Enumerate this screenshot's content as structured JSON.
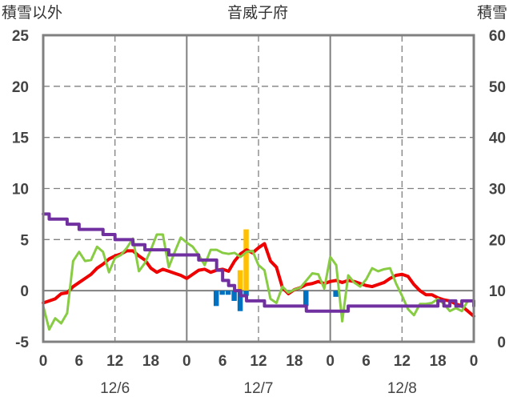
{
  "chart_data": {
    "type": "line",
    "title": "音威子府",
    "left_axis_label": "積雪以外",
    "right_axis_label": "積雪",
    "y_left": {
      "min": -5,
      "max": 25,
      "ticks": [
        -5,
        0,
        5,
        10,
        15,
        20,
        25
      ]
    },
    "y_right": {
      "min": 0,
      "max": 60,
      "ticks": [
        0,
        10,
        20,
        30,
        40,
        50,
        60
      ]
    },
    "x": {
      "min_hour": 0,
      "max_hour": 72,
      "tick_hours": [
        0,
        6,
        12,
        18,
        24,
        30,
        36,
        42,
        48,
        54,
        60,
        66,
        72
      ],
      "tick_labels": [
        "0",
        "6",
        "12",
        "18",
        "0",
        "6",
        "12",
        "18",
        "0",
        "6",
        "12",
        "18",
        "0"
      ],
      "date_labels": [
        {
          "hour": 12,
          "text": "12/6"
        },
        {
          "hour": 36,
          "text": "12/7"
        },
        {
          "hour": 60,
          "text": "12/8"
        }
      ],
      "solid_gridlines_at": [
        24,
        48
      ],
      "dashed_gridlines_at": [
        12,
        36,
        60
      ]
    },
    "grid": true,
    "series": [
      {
        "key": "temperature",
        "axis": "left",
        "color": "#ee0000",
        "width": 4,
        "points": [
          [
            0,
            -1.2
          ],
          [
            2,
            -0.8
          ],
          [
            3,
            -0.3
          ],
          [
            4,
            -0.2
          ],
          [
            5,
            0.4
          ],
          [
            6,
            0.8
          ],
          [
            7,
            1.2
          ],
          [
            8,
            1.6
          ],
          [
            9,
            2.2
          ],
          [
            10,
            2.6
          ],
          [
            11,
            3.1
          ],
          [
            12,
            3.4
          ],
          [
            13,
            3.6
          ],
          [
            14,
            3.9
          ],
          [
            15,
            3.9
          ],
          [
            16,
            3.4
          ],
          [
            17,
            3.0
          ],
          [
            18,
            2.2
          ],
          [
            19,
            1.8
          ],
          [
            20,
            2.1
          ],
          [
            21,
            1.9
          ],
          [
            22,
            1.7
          ],
          [
            23,
            1.5
          ],
          [
            24,
            1.2
          ],
          [
            25,
            1.6
          ],
          [
            26,
            2.0
          ],
          [
            27,
            2.1
          ],
          [
            28,
            1.8
          ],
          [
            29,
            2.0
          ],
          [
            30,
            2.1
          ],
          [
            31,
            1.9
          ],
          [
            32,
            2.9
          ],
          [
            33,
            3.6
          ],
          [
            34,
            4.0
          ],
          [
            35,
            3.7
          ],
          [
            36,
            4.2
          ],
          [
            37,
            4.6
          ],
          [
            38,
            2.9
          ],
          [
            39,
            2.3
          ],
          [
            40,
            0.3
          ],
          [
            41,
            -0.3
          ],
          [
            42,
            0.1
          ],
          [
            43,
            0.3
          ],
          [
            44,
            0.6
          ],
          [
            45,
            0.7
          ],
          [
            46,
            0.9
          ],
          [
            47,
            0.7
          ],
          [
            48,
            0.9
          ],
          [
            49,
            1.0
          ],
          [
            50,
            0.8
          ],
          [
            51,
            1.0
          ],
          [
            52,
            0.9
          ],
          [
            53,
            0.7
          ],
          [
            54,
            0.5
          ],
          [
            55,
            0.4
          ],
          [
            56,
            0.6
          ],
          [
            57,
            0.8
          ],
          [
            58,
            1.2
          ],
          [
            59,
            1.5
          ],
          [
            60,
            1.6
          ],
          [
            61,
            1.4
          ],
          [
            62,
            0.6
          ],
          [
            63,
            0.0
          ],
          [
            64,
            -0.4
          ],
          [
            65,
            -0.4
          ],
          [
            66,
            -0.7
          ],
          [
            67,
            -0.9
          ],
          [
            68,
            -1.0
          ],
          [
            69,
            -1.3
          ],
          [
            70,
            -1.5
          ],
          [
            71,
            -2.0
          ],
          [
            72,
            -2.5
          ]
        ]
      },
      {
        "key": "green",
        "axis": "left",
        "color": "#88cc44",
        "width": 3,
        "points": [
          [
            0,
            -1.5
          ],
          [
            1,
            -3.8
          ],
          [
            2,
            -2.7
          ],
          [
            3,
            -3.2
          ],
          [
            4,
            -2.2
          ],
          [
            5,
            2.9
          ],
          [
            6,
            3.8
          ],
          [
            7,
            2.9
          ],
          [
            8,
            3.0
          ],
          [
            9,
            4.3
          ],
          [
            10,
            3.8
          ],
          [
            11,
            1.8
          ],
          [
            12,
            3.2
          ],
          [
            13,
            3.5
          ],
          [
            14,
            4.2
          ],
          [
            15,
            5.1
          ],
          [
            16,
            1.9
          ],
          [
            17,
            2.7
          ],
          [
            18,
            4.0
          ],
          [
            19,
            5.5
          ],
          [
            20,
            5.5
          ],
          [
            21,
            2.3
          ],
          [
            22,
            3.8
          ],
          [
            23,
            5.2
          ],
          [
            24,
            4.7
          ],
          [
            25,
            4.3
          ],
          [
            26,
            3.5
          ],
          [
            27,
            2.5
          ],
          [
            28,
            4.0
          ],
          [
            29,
            4.0
          ],
          [
            30,
            3.7
          ],
          [
            31,
            3.6
          ],
          [
            32,
            3.7
          ],
          [
            33,
            3.3
          ],
          [
            34,
            3.8
          ],
          [
            35,
            3.9
          ],
          [
            36,
            2.5
          ],
          [
            37,
            2.0
          ],
          [
            38,
            -0.8
          ],
          [
            39,
            -1.2
          ],
          [
            40,
            0.4
          ],
          [
            41,
            -0.2
          ],
          [
            42,
            0.1
          ],
          [
            43,
            0.3
          ],
          [
            44,
            1.0
          ],
          [
            45,
            1.7
          ],
          [
            46,
            1.6
          ],
          [
            47,
            0.2
          ],
          [
            48,
            3.3
          ],
          [
            49,
            2.5
          ],
          [
            50,
            -3.0
          ],
          [
            51,
            1.5
          ],
          [
            52,
            0.8
          ],
          [
            53,
            0.4
          ],
          [
            54,
            1.1
          ],
          [
            55,
            2.2
          ],
          [
            56,
            1.9
          ],
          [
            57,
            2.1
          ],
          [
            58,
            2.2
          ],
          [
            59,
            0.7
          ],
          [
            60,
            -0.5
          ],
          [
            61,
            -1.8
          ],
          [
            62,
            -2.4
          ],
          [
            63,
            -1.3
          ],
          [
            64,
            -1.3
          ],
          [
            65,
            -1.2
          ],
          [
            66,
            -0.8
          ],
          [
            67,
            -1.3
          ],
          [
            68,
            -2.0
          ],
          [
            69,
            -1.7
          ],
          [
            70,
            -2.0
          ],
          [
            71,
            -1.0
          ],
          [
            72,
            -1.0
          ]
        ]
      },
      {
        "key": "snow_depth",
        "axis": "right",
        "color": "#7030a0",
        "width": 4,
        "step": true,
        "points": [
          [
            0,
            25
          ],
          [
            1,
            24
          ],
          [
            2,
            24
          ],
          [
            3,
            24
          ],
          [
            4,
            23
          ],
          [
            5,
            23
          ],
          [
            6,
            22
          ],
          [
            7,
            22
          ],
          [
            8,
            22
          ],
          [
            9,
            22
          ],
          [
            10,
            21
          ],
          [
            11,
            21
          ],
          [
            12,
            20
          ],
          [
            13,
            20
          ],
          [
            14,
            20
          ],
          [
            15,
            19
          ],
          [
            16,
            19
          ],
          [
            17,
            18
          ],
          [
            18,
            18
          ],
          [
            19,
            18
          ],
          [
            20,
            18
          ],
          [
            21,
            17
          ],
          [
            22,
            17
          ],
          [
            23,
            17
          ],
          [
            24,
            17
          ],
          [
            25,
            17
          ],
          [
            26,
            16
          ],
          [
            27,
            16
          ],
          [
            28,
            16
          ],
          [
            29,
            14
          ],
          [
            30,
            12
          ],
          [
            31,
            11
          ],
          [
            32,
            10
          ],
          [
            33,
            9
          ],
          [
            34,
            8
          ],
          [
            35,
            8
          ],
          [
            36,
            8
          ],
          [
            37,
            7
          ],
          [
            38,
            7
          ],
          [
            39,
            7
          ],
          [
            40,
            7
          ],
          [
            41,
            7
          ],
          [
            42,
            7
          ],
          [
            43,
            7
          ],
          [
            44,
            6
          ],
          [
            45,
            6
          ],
          [
            46,
            6
          ],
          [
            47,
            6
          ],
          [
            48,
            6
          ],
          [
            49,
            6
          ],
          [
            50,
            6
          ],
          [
            51,
            7
          ],
          [
            52,
            7
          ],
          [
            53,
            7
          ],
          [
            54,
            7
          ],
          [
            55,
            7
          ],
          [
            56,
            7
          ],
          [
            57,
            7
          ],
          [
            58,
            7
          ],
          [
            59,
            7
          ],
          [
            60,
            7
          ],
          [
            61,
            7
          ],
          [
            62,
            7
          ],
          [
            63,
            7
          ],
          [
            64,
            7
          ],
          [
            65,
            7
          ],
          [
            66,
            8
          ],
          [
            67,
            7
          ],
          [
            68,
            8
          ],
          [
            69,
            7
          ],
          [
            70,
            8
          ],
          [
            71,
            8
          ],
          [
            72,
            7
          ]
        ]
      }
    ],
    "bars": [
      {
        "key": "snowfall",
        "axis": "left",
        "color": "#ffc000",
        "width_hours": 1,
        "values": [
          [
            33,
            2.0
          ],
          [
            34,
            6.0
          ]
        ]
      },
      {
        "key": "precip",
        "axis": "left",
        "color": "#0070c0",
        "width_hours": 1,
        "values": [
          [
            29,
            -1.5
          ],
          [
            30,
            -0.4
          ],
          [
            31,
            -0.4
          ],
          [
            32,
            -1.0
          ],
          [
            33,
            -2.0
          ],
          [
            34,
            -0.5
          ],
          [
            44,
            -1.5
          ],
          [
            49,
            -0.6
          ]
        ]
      }
    ]
  }
}
